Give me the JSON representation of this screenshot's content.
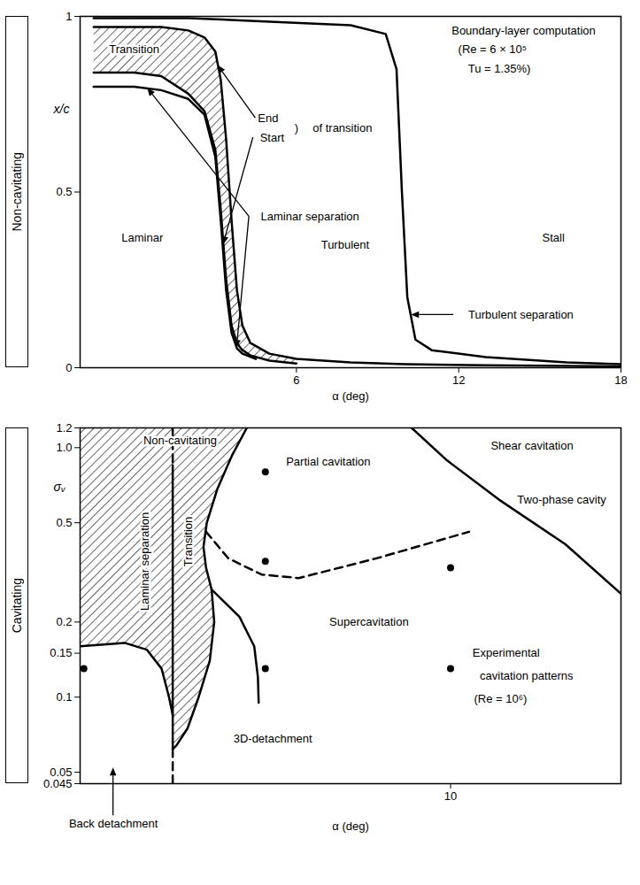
{
  "chart_data": [
    {
      "type": "line",
      "title": "Non-cavitating",
      "x_label": "α (deg)",
      "y_label": "x/c",
      "xlim": [
        -2,
        18
      ],
      "xticks": [
        6,
        12,
        18
      ],
      "ylim": [
        0,
        1
      ],
      "yticks": [
        0,
        0.5,
        1
      ],
      "series": [
        {
          "type": "area",
          "color": "#000000",
          "x": [
            -1.5,
            0,
            1,
            2,
            2.6,
            3,
            3.2,
            3.4,
            3.6,
            3.8,
            4,
            4.3,
            5,
            6,
            6,
            5,
            4.3,
            4,
            3.8,
            3.6,
            3.4,
            3.2,
            3,
            2.6,
            2,
            1,
            0,
            -1.5
          ],
          "values": [
            0.97,
            0.97,
            0.97,
            0.96,
            0.94,
            0.9,
            0.82,
            0.65,
            0.42,
            0.22,
            0.12,
            0.07,
            0.04,
            0.025,
            0.012,
            0.02,
            0.035,
            0.05,
            0.07,
            0.12,
            0.25,
            0.45,
            0.62,
            0.73,
            0.78,
            0.83,
            0.84,
            0.84
          ]
        },
        {
          "type": "line",
          "line_style": "solid",
          "color": "#000000",
          "x": [
            -1.5,
            0,
            1,
            2,
            2.6,
            3,
            3.2,
            3.4,
            3.6,
            3.8,
            4,
            4.3,
            5,
            6,
            8,
            10,
            13,
            18
          ],
          "values": [
            0.97,
            0.97,
            0.97,
            0.96,
            0.94,
            0.9,
            0.82,
            0.65,
            0.42,
            0.22,
            0.12,
            0.07,
            0.04,
            0.025,
            0.015,
            0.01,
            0.007,
            0.004
          ]
        },
        {
          "type": "line",
          "line_style": "solid",
          "color": "#000000",
          "x": [
            -1.5,
            0,
            1,
            2,
            2.6,
            3,
            3.2,
            3.4,
            3.6,
            3.8,
            4,
            4.3,
            5,
            6
          ],
          "values": [
            0.84,
            0.84,
            0.83,
            0.78,
            0.73,
            0.62,
            0.45,
            0.25,
            0.12,
            0.07,
            0.05,
            0.035,
            0.02,
            0.012
          ]
        },
        {
          "type": "line",
          "line_style": "solid",
          "color": "#000000",
          "x": [
            -1.5,
            0,
            1,
            2,
            2.6,
            3,
            3.2,
            3.4,
            3.6,
            3.8,
            4,
            4.5
          ],
          "values": [
            0.8,
            0.8,
            0.79,
            0.765,
            0.72,
            0.6,
            0.42,
            0.22,
            0.1,
            0.055,
            0.04,
            0.025
          ]
        },
        {
          "type": "line",
          "line_style": "solid",
          "color": "#000000",
          "x": [
            -1.5,
            2,
            5,
            8,
            9.3,
            9.7,
            9.9,
            10.1,
            10.4,
            11,
            13,
            16,
            18
          ],
          "values": [
            0.995,
            0.995,
            0.985,
            0.975,
            0.95,
            0.85,
            0.5,
            0.2,
            0.08,
            0.05,
            0.03,
            0.015,
            0.01
          ]
        }
      ],
      "annotations": [
        {
          "text": "Transition",
          "x": 0,
          "y": 0.905
        },
        {
          "text": "End",
          "x": 4.95,
          "y": 0.71,
          "points_to": [
            [
              3.1,
              0.86
            ]
          ]
        },
        {
          "text": "Start",
          "x": 5.1,
          "y": 0.655,
          "points_to": [
            [
              3.3,
              0.35
            ]
          ]
        },
        {
          "text": ")",
          "x": 6.0,
          "y": 0.683
        },
        {
          "text": "of transition",
          "x": 7.7,
          "y": 0.683
        },
        {
          "text": "Laminar separation",
          "x": 6.5,
          "y": 0.43,
          "points_to": [
            [
              0.5,
              0.795
            ],
            [
              3.8,
              0.055
            ]
          ]
        },
        {
          "text": "Laminar",
          "x": 0.3,
          "y": 0.37
        },
        {
          "text": "Turbulent",
          "x": 7.8,
          "y": 0.35
        },
        {
          "text": "Stall",
          "x": 15.5,
          "y": 0.37
        },
        {
          "text": "Turbulent separation",
          "x": 14.3,
          "y": 0.15,
          "points_to": [
            [
              10.25,
              0.15
            ]
          ]
        },
        {
          "text": "Boundary-layer computation",
          "x": 14.4,
          "y": 0.96
        },
        {
          "text": "(Re = 6 × 10⁵",
          "x": 13.25,
          "y": 0.905
        },
        {
          "text": "Tu = 1.35%)",
          "x": 13.5,
          "y": 0.85
        }
      ]
    },
    {
      "type": "line",
      "title": "Cavitating",
      "x_label": "α (deg)",
      "y_label": "σᵥ",
      "log": "y",
      "xlim": [
        0,
        14.6
      ],
      "xticks": [
        10
      ],
      "ylim": [
        0.045,
        1.2
      ],
      "yticks": [
        0.045,
        0.05,
        0.1,
        0.15,
        0.2,
        0.5,
        {
          "value": 1,
          "label": "1.0"
        },
        1.2
      ],
      "series": [
        {
          "type": "area",
          "color": "#000000",
          "x": [
            0,
            2.5,
            2.5,
            2.4,
            2.2,
            1.8,
            1.2,
            0
          ],
          "values": [
            1.2,
            1.2,
            0.085,
            0.1,
            0.13,
            0.155,
            0.165,
            0.16
          ]
        },
        {
          "type": "area",
          "color": "#000000",
          "x": [
            2.5,
            4.5,
            4.1,
            3.7,
            3.42,
            3.33,
            3.4,
            3.55,
            3.62,
            3.5,
            3.2,
            2.9,
            2.6,
            2.5
          ],
          "values": [
            1.2,
            1.2,
            0.93,
            0.68,
            0.5,
            0.4,
            0.33,
            0.27,
            0.2,
            0.14,
            0.1,
            0.075,
            0.064,
            0.062
          ]
        },
        {
          "type": "line",
          "line_style": "dashed",
          "color": "#000000",
          "x": [
            2.5,
            2.5
          ],
          "values": [
            1.2,
            0.85
          ]
        },
        {
          "type": "line",
          "line_style": "solid",
          "color": "#000000",
          "x": [
            2.5,
            2.5
          ],
          "values": [
            0.85,
            0.062
          ]
        },
        {
          "type": "line",
          "line_style": "dashed",
          "color": "#000000",
          "x": [
            2.5,
            2.5
          ],
          "values": [
            0.062,
            0.045
          ]
        },
        {
          "type": "line",
          "line_style": "solid",
          "color": "#000000",
          "x": [
            4.5,
            4.1,
            3.7,
            3.42,
            3.33,
            3.4,
            3.55,
            3.62,
            3.5,
            3.2,
            2.9,
            2.6,
            2.5
          ],
          "values": [
            1.2,
            0.93,
            0.68,
            0.5,
            0.4,
            0.33,
            0.27,
            0.2,
            0.14,
            0.1,
            0.075,
            0.064,
            0.062
          ]
        },
        {
          "type": "line",
          "line_style": "solid",
          "color": "#000000",
          "x": [
            3.55,
            4.3,
            4.7,
            4.8,
            4.82
          ],
          "values": [
            0.27,
            0.21,
            0.16,
            0.12,
            0.095
          ]
        },
        {
          "type": "line",
          "line_style": "solid",
          "color": "#000000",
          "x": [
            0,
            1.2,
            1.8,
            2.2,
            2.4,
            2.5
          ],
          "values": [
            0.16,
            0.165,
            0.155,
            0.13,
            0.1,
            0.085
          ]
        },
        {
          "type": "line",
          "line_style": "dashed",
          "color": "#000000",
          "x": [
            3.4,
            4.0,
            4.9,
            5.9,
            8.0,
            10.5
          ],
          "values": [
            0.46,
            0.36,
            0.31,
            0.3,
            0.36,
            0.46
          ]
        },
        {
          "type": "line",
          "line_style": "solid",
          "color": "#000000",
          "x": [
            8.95,
            9.9,
            11.3,
            13.1,
            14.6
          ],
          "values": [
            1.2,
            0.89,
            0.62,
            0.41,
            0.26
          ]
        },
        {
          "type": "scatter",
          "marker": "circle",
          "color": "#000000",
          "x": [
            0.1,
            5,
            5,
            5,
            10,
            10
          ],
          "values": [
            0.13,
            0.8,
            0.35,
            0.13,
            0.33,
            0.13
          ]
        }
      ],
      "annotations": [
        {
          "text": "Non-cavitating",
          "x": 2.7,
          "y": 1.07
        },
        {
          "text": "Partial cavitation",
          "x": 6.7,
          "y": 0.88
        },
        {
          "text": "Shear cavitation",
          "x": 12.2,
          "y": 1.02
        },
        {
          "text": "Two-phase cavity",
          "x": 13.0,
          "y": 0.62
        },
        {
          "text": "Supercavitation",
          "x": 7.8,
          "y": 0.2
        },
        {
          "text": "Laminar separation",
          "x": 1.75,
          "y": 0.35,
          "orientation": "vertical"
        },
        {
          "text": "Transition",
          "x": 2.92,
          "y": 0.42,
          "orientation": "vertical"
        },
        {
          "text": "3D-detachment",
          "x": 5.2,
          "y": 0.068
        },
        {
          "text": "Experimental",
          "x": 11.5,
          "y": 0.15
        },
        {
          "text": "cavitation patterns",
          "x": 12.05,
          "y": 0.122
        },
        {
          "text": "(Re = 10⁶)",
          "x": 11.35,
          "y": 0.098
        },
        {
          "text": "Back detachment",
          "x": 0.9,
          "y": 0.031,
          "points_to": [
            [
              0.9,
              0.052
            ]
          ]
        }
      ]
    }
  ]
}
